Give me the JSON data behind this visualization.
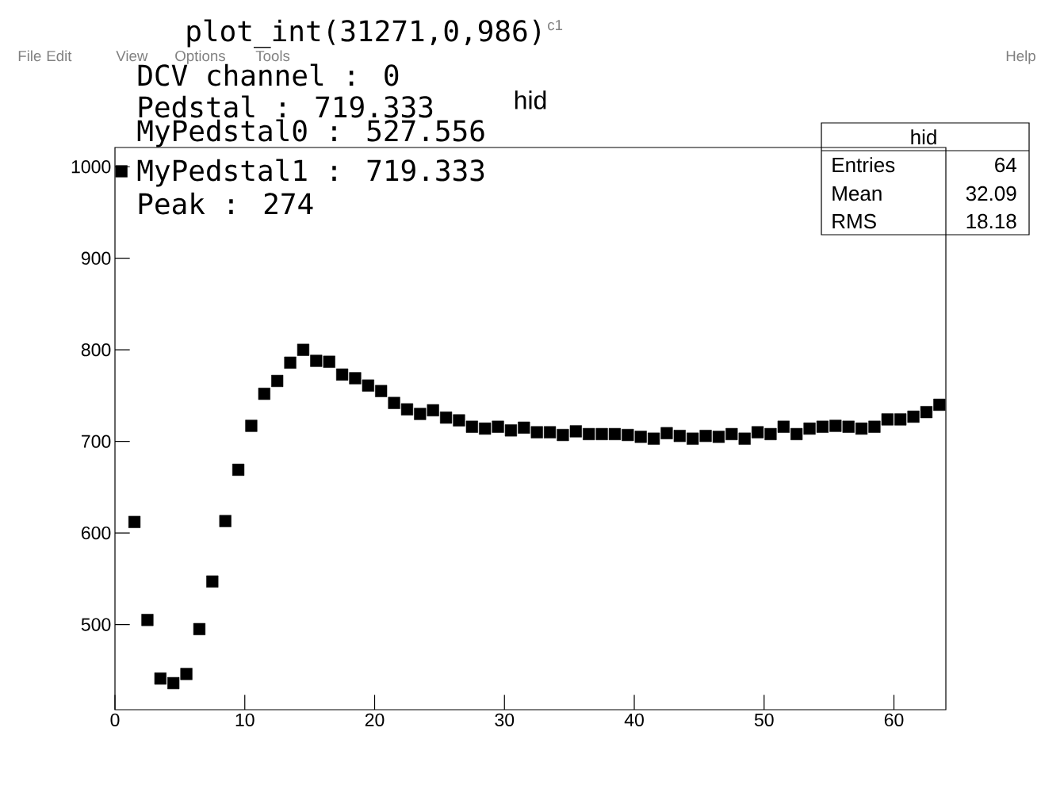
{
  "chart_data": {
    "type": "scatter",
    "title": "hid",
    "color": "#000000",
    "marker": "square",
    "x": [
      0.5,
      1.5,
      2.5,
      3.5,
      4.5,
      5.5,
      6.5,
      7.5,
      8.5,
      9.5,
      10.5,
      11.5,
      12.5,
      13.5,
      14.5,
      15.5,
      16.5,
      17.5,
      18.5,
      19.5,
      20.5,
      21.5,
      22.5,
      23.5,
      24.5,
      25.5,
      26.5,
      27.5,
      28.5,
      29.5,
      30.5,
      31.5,
      32.5,
      33.5,
      34.5,
      35.5,
      36.5,
      37.5,
      38.5,
      39.5,
      40.5,
      41.5,
      42.5,
      43.5,
      44.5,
      45.5,
      46.5,
      47.5,
      48.5,
      49.5,
      50.5,
      51.5,
      52.5,
      53.5,
      54.5,
      55.5,
      56.5,
      57.5,
      58.5,
      59.5,
      60.5,
      61.5,
      62.5,
      63.5
    ],
    "values": [
      995,
      612,
      505,
      441,
      436,
      446,
      495,
      547,
      613,
      669,
      717,
      752,
      766,
      786,
      800,
      788,
      787,
      773,
      769,
      761,
      755,
      742,
      735,
      730,
      734,
      726,
      723,
      716,
      714,
      716,
      712,
      715,
      710,
      710,
      707,
      711,
      708,
      708,
      708,
      707,
      705,
      703,
      709,
      706,
      703,
      706,
      705,
      708,
      703,
      710,
      708,
      716,
      708,
      714,
      716,
      717,
      716,
      714,
      716,
      724,
      724,
      727,
      732,
      740
    ],
    "xlim": [
      0,
      64
    ],
    "ylim": [
      407,
      1021
    ],
    "xticks": [
      0,
      10,
      20,
      30,
      40,
      50,
      60
    ],
    "yticks": [
      500,
      600,
      700,
      800,
      900,
      1000
    ],
    "annotations": [
      "plot_int(31271,0,986)",
      "DCV channel : 0",
      "Pedstal : 719.333",
      "MyPedstal0 : 527.556",
      "MyPedstal1 : 719.333",
      "Peak : 274",
      "File",
      "Edit",
      "View",
      "Options",
      "Tools",
      "Help",
      "c1",
      "hid",
      "Entries",
      "64",
      "Mean",
      "32.09",
      "RMS",
      "18.18"
    ]
  }
}
